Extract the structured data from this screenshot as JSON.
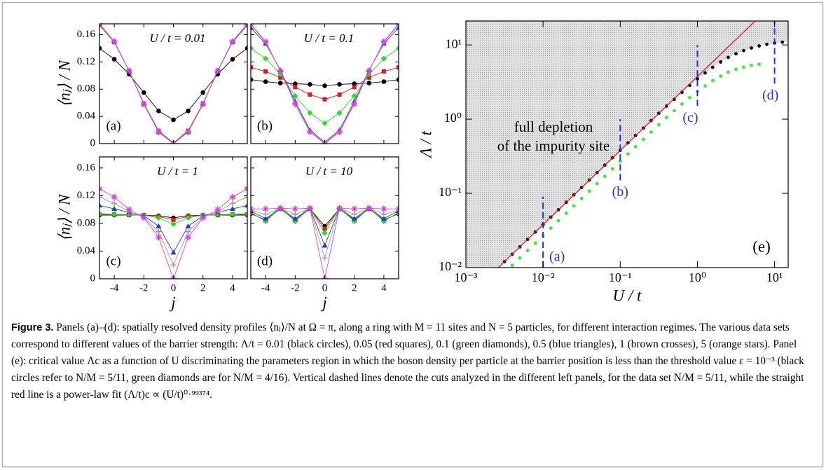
{
  "chart_data": [
    {
      "type": "line",
      "title": "U / t = 0.01",
      "panel_label": "(a)",
      "ylabel": "⟨nⱼ⟩ / N",
      "x": [
        -5,
        -4,
        -3,
        -2,
        -1,
        0,
        1,
        2,
        3,
        4,
        5
      ],
      "xlim": [
        -5,
        5
      ],
      "xticks": [
        -4,
        -2,
        0,
        2,
        4
      ],
      "xticklabels": false,
      "ylim": [
        0,
        0.176
      ],
      "yticks": [
        0,
        0.04,
        0.08,
        0.12,
        0.16
      ],
      "yticklabels": true,
      "series": [
        {
          "color": "#000000",
          "marker": "circle",
          "values": [
            0.14,
            0.124,
            0.102,
            0.075,
            0.048,
            0.035,
            0.048,
            0.075,
            0.102,
            0.124,
            0.14
          ]
        },
        {
          "color": "#e8141b",
          "marker": "square",
          "values": [
            0.174,
            0.149,
            0.107,
            0.059,
            0.019,
            0.001,
            0.019,
            0.059,
            0.107,
            0.149,
            0.174
          ]
        },
        {
          "color": "#22dd22",
          "marker": "diamond",
          "values": [
            0.175,
            0.15,
            0.107,
            0.058,
            0.018,
            0.0005,
            0.018,
            0.058,
            0.107,
            0.15,
            0.175
          ]
        },
        {
          "color": "#1a3bd6",
          "marker": "triangle",
          "values": [
            0.176,
            0.15,
            0.107,
            0.058,
            0.017,
            0,
            0.017,
            0.058,
            0.107,
            0.15,
            0.176
          ]
        },
        {
          "color": "#b09a8a",
          "marker": "cross",
          "values": [
            0.176,
            0.15,
            0.107,
            0.058,
            0.017,
            0,
            0.017,
            0.058,
            0.107,
            0.15,
            0.176
          ]
        },
        {
          "color": "#e23ce8",
          "marker": "star",
          "values": [
            0.176,
            0.15,
            0.107,
            0.058,
            0.017,
            0,
            0.017,
            0.058,
            0.107,
            0.15,
            0.176
          ]
        }
      ]
    },
    {
      "type": "line",
      "title": "U / t = 0.1",
      "panel_label": "(b)",
      "x": [
        -5,
        -4,
        -3,
        -2,
        -1,
        0,
        1,
        2,
        3,
        4,
        5
      ],
      "xlim": [
        -5,
        5
      ],
      "xticks": [
        -4,
        -2,
        0,
        2,
        4
      ],
      "xticklabels": false,
      "ylim": [
        0,
        0.176
      ],
      "yticks": [
        0,
        0.04,
        0.08,
        0.12,
        0.16
      ],
      "yticklabels": false,
      "series": [
        {
          "color": "#000000",
          "marker": "circle",
          "values": [
            0.094,
            0.091,
            0.089,
            0.088,
            0.087,
            0.085,
            0.087,
            0.088,
            0.089,
            0.091,
            0.094
          ]
        },
        {
          "color": "#e8141b",
          "marker": "square",
          "values": [
            0.112,
            0.106,
            0.097,
            0.083,
            0.072,
            0.065,
            0.072,
            0.083,
            0.097,
            0.106,
            0.112
          ]
        },
        {
          "color": "#22dd22",
          "marker": "diamond",
          "values": [
            0.14,
            0.125,
            0.102,
            0.07,
            0.045,
            0.03,
            0.045,
            0.07,
            0.102,
            0.125,
            0.14
          ]
        },
        {
          "color": "#1a3bd6",
          "marker": "triangle",
          "values": [
            0.17,
            0.147,
            0.108,
            0.062,
            0.02,
            0.002,
            0.02,
            0.062,
            0.108,
            0.147,
            0.17
          ]
        },
        {
          "color": "#b09a8a",
          "marker": "cross",
          "values": [
            0.174,
            0.149,
            0.107,
            0.059,
            0.018,
            0.001,
            0.018,
            0.059,
            0.107,
            0.149,
            0.174
          ]
        },
        {
          "color": "#e23ce8",
          "marker": "star",
          "values": [
            0.176,
            0.15,
            0.107,
            0.058,
            0.017,
            0,
            0.017,
            0.058,
            0.107,
            0.15,
            0.176
          ]
        }
      ]
    },
    {
      "type": "line",
      "title": "U / t = 1",
      "panel_label": "(c)",
      "xlabel": "j",
      "ylabel": "⟨nⱼ⟩ / N",
      "x": [
        -5,
        -4,
        -3,
        -2,
        -1,
        0,
        1,
        2,
        3,
        4,
        5
      ],
      "xlim": [
        -5,
        5
      ],
      "xticks": [
        -4,
        -2,
        0,
        2,
        4
      ],
      "xticklabels": true,
      "ylim": [
        0,
        0.176
      ],
      "yticks": [
        0,
        0.04,
        0.08,
        0.12,
        0.16
      ],
      "yticklabels": true,
      "series": [
        {
          "color": "#000000",
          "marker": "circle",
          "values": [
            0.092,
            0.092,
            0.092,
            0.092,
            0.091,
            0.088,
            0.091,
            0.092,
            0.092,
            0.092,
            0.092
          ]
        },
        {
          "color": "#e8141b",
          "marker": "square",
          "values": [
            0.093,
            0.093,
            0.092,
            0.092,
            0.09,
            0.085,
            0.09,
            0.092,
            0.092,
            0.093,
            0.093
          ]
        },
        {
          "color": "#22dd22",
          "marker": "diamond",
          "values": [
            0.094,
            0.093,
            0.093,
            0.092,
            0.088,
            0.079,
            0.088,
            0.092,
            0.093,
            0.093,
            0.094
          ]
        },
        {
          "color": "#1a3bd6",
          "marker": "triangle",
          "values": [
            0.106,
            0.101,
            0.096,
            0.091,
            0.076,
            0.038,
            0.076,
            0.091,
            0.096,
            0.101,
            0.106
          ]
        },
        {
          "color": "#b09a8a",
          "marker": "cross",
          "values": [
            0.118,
            0.109,
            0.097,
            0.089,
            0.068,
            0.02,
            0.068,
            0.089,
            0.097,
            0.109,
            0.118
          ]
        },
        {
          "color": "#e23ce8",
          "marker": "star",
          "values": [
            0.13,
            0.118,
            0.1,
            0.088,
            0.06,
            0,
            0.06,
            0.088,
            0.1,
            0.118,
            0.13
          ]
        }
      ]
    },
    {
      "type": "line",
      "title": "U / t = 10",
      "panel_label": "(d)",
      "xlabel": "j",
      "x": [
        -5,
        -4,
        -3,
        -2,
        -1,
        0,
        1,
        2,
        3,
        4,
        5
      ],
      "xlim": [
        -5,
        5
      ],
      "xticks": [
        -4,
        -2,
        0,
        2,
        4
      ],
      "xticklabels": true,
      "ylim": [
        0,
        0.176
      ],
      "yticks": [
        0,
        0.04,
        0.08,
        0.12,
        0.16
      ],
      "yticklabels": false,
      "series": [
        {
          "color": "#000000",
          "marker": "circle",
          "values": [
            0.094,
            0.085,
            0.101,
            0.085,
            0.101,
            0.076,
            0.101,
            0.085,
            0.101,
            0.085,
            0.094
          ]
        },
        {
          "color": "#e8141b",
          "marker": "square",
          "values": [
            0.095,
            0.084,
            0.101,
            0.084,
            0.101,
            0.072,
            0.101,
            0.084,
            0.101,
            0.084,
            0.095
          ]
        },
        {
          "color": "#22dd22",
          "marker": "diamond",
          "values": [
            0.096,
            0.083,
            0.102,
            0.083,
            0.102,
            0.066,
            0.102,
            0.083,
            0.102,
            0.083,
            0.096
          ]
        },
        {
          "color": "#1a3bd6",
          "marker": "triangle",
          "values": [
            0.098,
            0.087,
            0.102,
            0.087,
            0.102,
            0.048,
            0.102,
            0.087,
            0.102,
            0.087,
            0.098
          ]
        },
        {
          "color": "#b09a8a",
          "marker": "cross",
          "values": [
            0.099,
            0.093,
            0.102,
            0.093,
            0.102,
            0.03,
            0.102,
            0.093,
            0.102,
            0.093,
            0.099
          ]
        },
        {
          "color": "#e23ce8",
          "marker": "star",
          "values": [
            0.101,
            0.101,
            0.102,
            0.101,
            0.102,
            0,
            0.102,
            0.101,
            0.102,
            0.101,
            0.101
          ]
        }
      ]
    },
    {
      "type": "scatter",
      "panel_label": "(e)",
      "xlabel": "U / t",
      "ylabel": "Λ / t",
      "annotations": [
        "full depletion",
        "of the impurity site"
      ],
      "xscale": "log",
      "yscale": "log",
      "xlim": [
        0.001,
        15
      ],
      "ylim": [
        0.01,
        21
      ],
      "xticks": [
        {
          "value": 0.001,
          "label": "10⁻³"
        },
        {
          "value": 0.01,
          "label": "10⁻²"
        },
        {
          "value": 0.1,
          "label": "10⁻¹"
        },
        {
          "value": 1,
          "label": "10⁰"
        },
        {
          "value": 10,
          "label": "10¹"
        }
      ],
      "yticks": [
        {
          "value": 0.01,
          "label": "10⁻²"
        },
        {
          "value": 0.1,
          "label": "10⁻¹"
        },
        {
          "value": 1,
          "label": "10⁰"
        },
        {
          "value": 10,
          "label": "10¹"
        }
      ],
      "xticklabels": true,
      "yticklabels": true,
      "shade_color": "#dcdcdc",
      "series": [
        {
          "color": "#000000",
          "marker": "circle",
          "x": [
            0.00251,
            0.00316,
            0.00398,
            0.00501,
            0.00631,
            0.00794,
            0.01,
            0.0126,
            0.0158,
            0.02,
            0.0251,
            0.0316,
            0.0398,
            0.0501,
            0.0631,
            0.0794,
            0.1,
            0.126,
            0.158,
            0.2,
            0.251,
            0.316,
            0.398,
            0.501,
            0.631,
            0.794,
            1,
            1.26,
            1.58,
            2,
            2.51,
            3.16,
            3.98,
            5.01,
            6.31,
            7.94,
            10,
            12.6
          ],
          "values": [
            0.00955,
            0.012,
            0.0151,
            0.019,
            0.024,
            0.0302,
            0.038,
            0.0478,
            0.0602,
            0.0758,
            0.0955,
            0.12,
            0.151,
            0.19,
            0.24,
            0.302,
            0.38,
            0.478,
            0.602,
            0.758,
            0.955,
            1.2,
            1.5,
            1.85,
            2.3,
            2.85,
            3.5,
            4.2,
            5.0,
            5.9,
            6.8,
            7.6,
            8.4,
            9.1,
            9.7,
            10.2,
            10.6,
            10.9
          ]
        },
        {
          "color": "#33ee33",
          "marker": "circle",
          "x": [
            0.00398,
            0.00501,
            0.00631,
            0.00794,
            0.01,
            0.0126,
            0.0158,
            0.02,
            0.0251,
            0.0316,
            0.0398,
            0.0501,
            0.0631,
            0.0794,
            0.1,
            0.126,
            0.158,
            0.2,
            0.251,
            0.316,
            0.398,
            0.501,
            0.631,
            0.794,
            1,
            1.26,
            1.58,
            2,
            2.51,
            3.16,
            3.98,
            5.01,
            6.31
          ],
          "values": [
            0.0107,
            0.0135,
            0.017,
            0.0214,
            0.027,
            0.034,
            0.0427,
            0.054,
            0.0678,
            0.0854,
            0.107,
            0.135,
            0.17,
            0.214,
            0.27,
            0.34,
            0.425,
            0.535,
            0.67,
            0.84,
            1.05,
            1.3,
            1.6,
            1.95,
            2.35,
            2.8,
            3.3,
            3.8,
            4.3,
            4.7,
            5.0,
            5.3,
            5.5
          ]
        },
        {
          "color": "#e8141b",
          "marker": "none",
          "x": [
            0.0025,
            5.5
          ],
          "values": [
            0.0095,
            20.6
          ]
        }
      ],
      "cuts": [
        {
          "x": 0.01,
          "y": [
            0.01,
            0.09
          ],
          "label": "(a)"
        },
        {
          "x": 0.1,
          "y": [
            0.15,
            1.0
          ],
          "label": "(b)"
        },
        {
          "x": 1,
          "y": [
            1.5,
            10
          ],
          "label": "(c)"
        },
        {
          "x": 10,
          "y": [
            3,
            21
          ],
          "label": "(d)"
        }
      ],
      "cut_color": "#2233dd"
    }
  ],
  "caption": {
    "label": "Figure 3.",
    "text": " Panels (a)–(d): spatially resolved density profiles ⟨nⱼ⟩/N at Ω = π, along a ring with M = 11 sites and N = 5 particles, for different interaction regimes. The various data sets correspond to different values of the barrier strength: Λ/t = 0.01 (black circles), 0.05 (red squares), 0.1 (green diamonds), 0.5 (blue triangles), 1 (brown crosses), 5 (orange stars). Panel (e): critical value Λc as a function of U discriminating the parameters region in which the boson density per particle at the barrier position is less than the threshold value ε = 10⁻³ (black circles refer to N/M = 5/11, green diamonds are for N/M = 4/16). Vertical dashed lines denote the cuts analyzed in the different left panels, for the data set N/M = 5/11, while the straight red line is a power-law fit (Λ/t)c ∝ (U/t)⁰·⁹⁹³⁷⁴."
  }
}
